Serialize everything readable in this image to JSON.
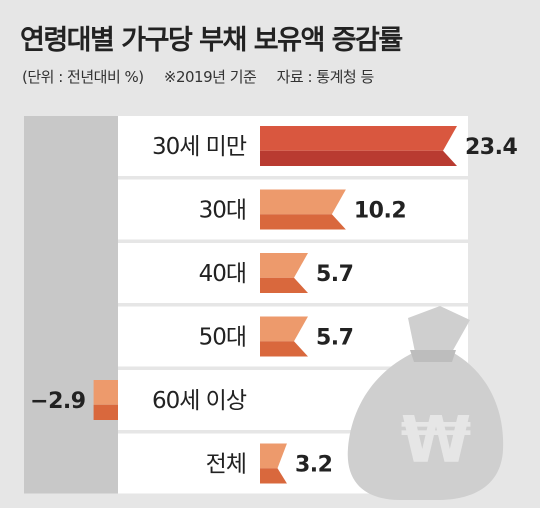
{
  "title": "연령대별 가구당 부채 보유액 증감률",
  "notes": {
    "unit": "(단위 : 전년대비 %)",
    "basis": "※2019년 기준",
    "source": "자료 : 통계청 등"
  },
  "colors": {
    "highlight": "#d9573f",
    "highlight_dark": "#b93b31",
    "bar": "#ed9a6c",
    "bar_dark": "#d9683d",
    "negative_panel": "#c8c8c8",
    "moneybag": "#cfcfcf"
  },
  "icons": [
    "won-moneybag-icon"
  ],
  "chart_data": {
    "type": "bar",
    "orientation": "horizontal",
    "title": "연령대별 가구당 부채 보유액 증감률",
    "unit": "전년대비 %",
    "categories": [
      "30세 미만",
      "30대",
      "40대",
      "50대",
      "60세 이상",
      "전체"
    ],
    "values": [
      23.4,
      10.2,
      5.7,
      5.7,
      -2.9,
      3.2
    ],
    "data_labels": [
      "23.4",
      "10.2",
      "5.7",
      "5.7",
      "−2.9",
      "3.2"
    ],
    "highlight_index": 0
  }
}
